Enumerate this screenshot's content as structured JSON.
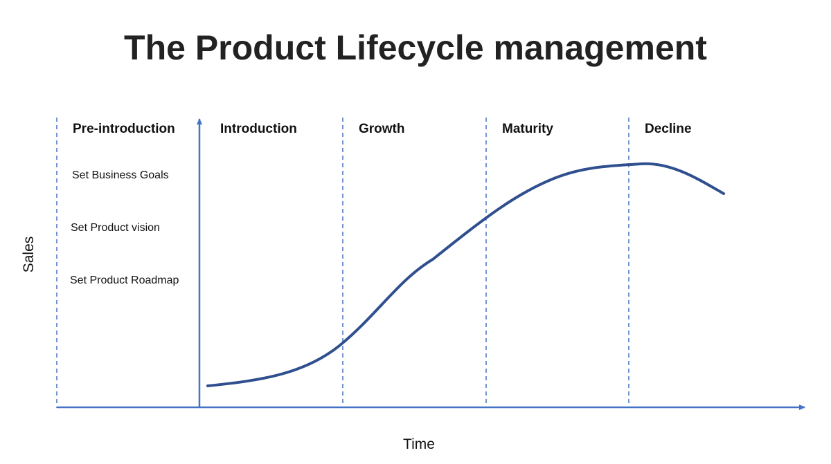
{
  "title": "The Product Lifecycle management",
  "axes": {
    "x_label": "Time",
    "y_label": "Sales"
  },
  "stages": [
    {
      "label": "Pre-introduction"
    },
    {
      "label": "Introduction"
    },
    {
      "label": "Growth"
    },
    {
      "label": "Maturity"
    },
    {
      "label": "Decline"
    }
  ],
  "pre_introduction_tasks": [
    "Set Business Goals",
    "Set Product vision",
    "Set Product Roadmap"
  ],
  "colors": {
    "axis": "#4472c4",
    "divider": "#4472c4",
    "curve": "#2f4f8f",
    "text": "#111111"
  }
}
